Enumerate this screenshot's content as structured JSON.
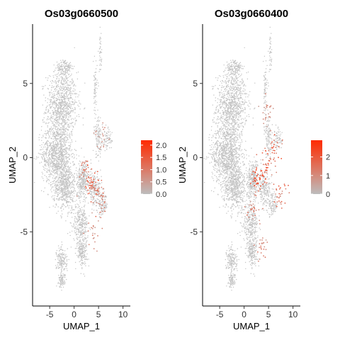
{
  "chart_data": [
    {
      "type": "scatter",
      "subtype": "umap-feature-plot",
      "title": "Os03g0660500",
      "xlabel": "UMAP_1",
      "ylabel": "UMAP_2",
      "xlim": [
        -8.5,
        11.5
      ],
      "ylim": [
        -10,
        9
      ],
      "x_ticks": [
        "-5",
        "0",
        "5",
        "10"
      ],
      "y_ticks": [
        "-5",
        "0",
        "5"
      ],
      "grid": false,
      "legend": {
        "placement": "right",
        "type": "colorbar",
        "ticks": [
          "2.0",
          "1.5",
          "1.0",
          "0.5",
          "0.0"
        ],
        "min": 0,
        "max": 2.2,
        "low_color": "#bdbdbd",
        "high_color": "#ff2a00"
      },
      "expression_hotspots": [
        {
          "x": 3.2,
          "y": -1.6,
          "level": 2.0
        },
        {
          "x": 4.6,
          "y": -2.0,
          "level": 1.8
        },
        {
          "x": 2.0,
          "y": -1.2,
          "level": 1.4
        },
        {
          "x": 5.6,
          "y": -3.0,
          "level": 1.2
        },
        {
          "x": 4.0,
          "y": -5.0,
          "level": 0.9
        },
        {
          "x": 5.2,
          "y": 1.5,
          "level": 0.8
        }
      ]
    },
    {
      "type": "scatter",
      "subtype": "umap-feature-plot",
      "title": "Os03g0660400",
      "xlabel": "UMAP_1",
      "ylabel": "UMAP_2",
      "xlim": [
        -8.5,
        11.5
      ],
      "ylim": [
        -10,
        9
      ],
      "x_ticks": [
        "-5",
        "0",
        "5",
        "10"
      ],
      "y_ticks": [
        "-5",
        "0",
        "5"
      ],
      "grid": false,
      "legend": {
        "placement": "right",
        "type": "colorbar",
        "ticks": [
          "2",
          "1",
          "0"
        ],
        "min": 0,
        "max": 2.9,
        "low_color": "#bdbdbd",
        "high_color": "#ff2a00"
      },
      "expression_hotspots": [
        {
          "x": 3.0,
          "y": -1.5,
          "level": 2.8
        },
        {
          "x": 4.5,
          "y": -0.5,
          "level": 2.5
        },
        {
          "x": 6.5,
          "y": 0.5,
          "level": 2.2
        },
        {
          "x": 7.5,
          "y": -2.5,
          "level": 2.0
        },
        {
          "x": 2.0,
          "y": -3.5,
          "level": 1.6
        },
        {
          "x": 3.5,
          "y": -6.0,
          "level": 1.4
        },
        {
          "x": 4.5,
          "y": 3.0,
          "level": 1.2
        }
      ]
    }
  ]
}
